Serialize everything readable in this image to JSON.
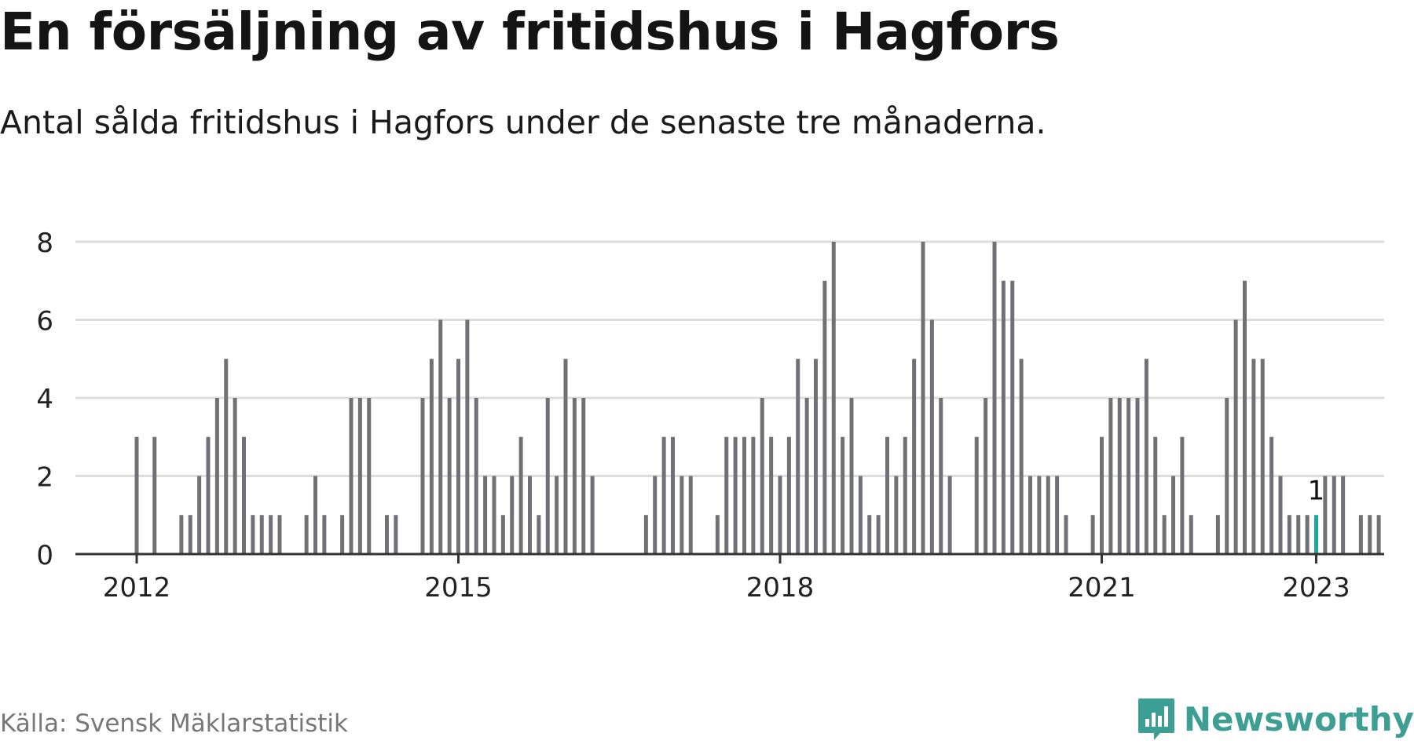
{
  "header": {
    "title": "En försäljning av fritidshus i Hagfors",
    "subtitle": "Antal sålda fritidshus i Hagfors under de senaste tre månaderna."
  },
  "footer": {
    "source": "Källa: Svensk Mäklarstatistik",
    "brand": "Newsworthy",
    "brand_icon": "bar-chart-speech-bubble-icon"
  },
  "colors": {
    "bar": "#717075",
    "highlight": "#1aa89a",
    "grid": "#dddddd",
    "axis": "#333333",
    "brand": "#3d9e93"
  },
  "chart_data": {
    "type": "bar",
    "title": "",
    "xlabel": "",
    "ylabel": "",
    "ylim": [
      0,
      8
    ],
    "y_ticks": [
      0,
      2,
      4,
      6,
      8
    ],
    "x_ticks": [
      2012,
      2015,
      2018,
      2021,
      2023
    ],
    "grid": true,
    "x_start": 2012,
    "x_step": "1 month",
    "values": [
      3,
      0,
      3,
      0,
      0,
      1,
      1,
      2,
      3,
      4,
      5,
      4,
      3,
      1,
      1,
      1,
      1,
      0,
      0,
      1,
      2,
      1,
      0,
      1,
      4,
      4,
      4,
      0,
      1,
      1,
      0,
      0,
      4,
      5,
      6,
      4,
      5,
      6,
      4,
      2,
      2,
      1,
      2,
      3,
      2,
      1,
      4,
      2,
      5,
      4,
      4,
      2,
      0,
      0,
      0,
      0,
      0,
      1,
      2,
      3,
      3,
      2,
      2,
      0,
      0,
      1,
      3,
      3,
      3,
      3,
      4,
      3,
      2,
      3,
      5,
      4,
      5,
      7,
      8,
      3,
      4,
      2,
      1,
      1,
      3,
      2,
      3,
      5,
      8,
      6,
      4,
      2,
      0,
      0,
      3,
      4,
      8,
      7,
      7,
      5,
      2,
      2,
      2,
      2,
      1,
      0,
      0,
      1,
      3,
      4,
      4,
      4,
      4,
      5,
      3,
      1,
      2,
      3,
      1,
      0,
      0,
      1,
      4,
      6,
      7,
      5,
      5,
      3,
      2,
      1,
      1,
      1,
      1,
      2,
      2,
      2,
      0,
      1,
      1,
      1
    ],
    "highlight_index": 132,
    "highlight_label": "1"
  }
}
